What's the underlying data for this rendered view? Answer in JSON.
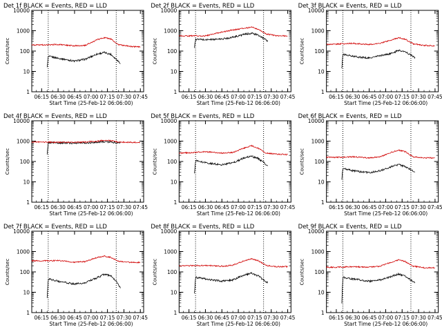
{
  "colors": {
    "events": "#000000",
    "lld": "#d00000",
    "axes": "#000000",
    "background": "#ffffff"
  },
  "chart_data": [
    {
      "type": "line",
      "title": "Det 1f BLACK = Events, RED = LLD",
      "xlabel": "Start Time (25-Feb-12 06:06:00)",
      "ylabel": "Counts/sec",
      "x_ticks": [
        "06:15",
        "06:30",
        "06:45",
        "07:00",
        "07:15",
        "07:30",
        "07:45"
      ],
      "y_ticks": [
        "1",
        "10",
        "100",
        "1000",
        "10000"
      ],
      "yscale": "log",
      "ylim": [
        1,
        10000
      ],
      "xlim": [
        "06:06",
        "07:48"
      ],
      "markers": [
        "06:21",
        "07:23"
      ],
      "series": [
        {
          "name": "Events",
          "color": "#000000",
          "t": [
            "06:20",
            "06:21",
            "06:30",
            "06:45",
            "06:55",
            "07:05",
            "07:12",
            "07:18",
            "07:23",
            "07:27"
          ],
          "values": [
            15,
            55,
            45,
            32,
            40,
            70,
            85,
            70,
            40,
            25
          ]
        },
        {
          "name": "LLD",
          "color": "#d00000",
          "t": [
            "06:06",
            "06:15",
            "06:30",
            "06:45",
            "06:55",
            "07:05",
            "07:12",
            "07:18",
            "07:25",
            "07:35",
            "07:45"
          ],
          "values": [
            200,
            200,
            210,
            180,
            190,
            350,
            460,
            400,
            210,
            170,
            160
          ]
        }
      ]
    },
    {
      "type": "line",
      "title": "Det 2f BLACK = Events, RED = LLD",
      "xlabel": "Start Time (25-Feb-12 06:06:00)",
      "ylabel": "Counts/sec",
      "x_ticks": [
        "06:15",
        "06:30",
        "06:45",
        "07:00",
        "07:15",
        "07:30",
        "07:45"
      ],
      "y_ticks": [
        "1",
        "10",
        "100",
        "1000",
        "10000"
      ],
      "yscale": "log",
      "ylim": [
        1,
        10000
      ],
      "xlim": [
        "06:06",
        "07:48"
      ],
      "markers": [
        "06:21",
        "07:23"
      ],
      "series": [
        {
          "name": "Events",
          "color": "#000000",
          "t": [
            "06:20",
            "06:21",
            "06:30",
            "06:45",
            "06:55",
            "07:05",
            "07:12",
            "07:18",
            "07:23",
            "07:27"
          ],
          "values": [
            150,
            380,
            360,
            390,
            480,
            650,
            760,
            600,
            420,
            310
          ]
        },
        {
          "name": "LLD",
          "color": "#d00000",
          "t": [
            "06:06",
            "06:15",
            "06:30",
            "06:45",
            "06:55",
            "07:05",
            "07:12",
            "07:18",
            "07:25",
            "07:35",
            "07:45"
          ],
          "values": [
            560,
            560,
            560,
            860,
            1100,
            1300,
            1500,
            1200,
            700,
            560,
            560
          ]
        }
      ]
    },
    {
      "type": "line",
      "title": "Det 3f BLACK = Events, RED = LLD",
      "xlabel": "Start Time (25-Feb-12 06:06:00)",
      "ylabel": "Counts/sec",
      "x_ticks": [
        "06:15",
        "06:30",
        "06:45",
        "07:00",
        "07:15",
        "07:30",
        "07:45"
      ],
      "y_ticks": [
        "1",
        "10",
        "100",
        "1000",
        "10000"
      ],
      "yscale": "log",
      "ylim": [
        1,
        10000
      ],
      "xlim": [
        "06:06",
        "07:48"
      ],
      "markers": [
        "06:21",
        "07:23"
      ],
      "series": [
        {
          "name": "Events",
          "color": "#000000",
          "t": [
            "06:20",
            "06:21",
            "06:30",
            "06:45",
            "06:55",
            "07:05",
            "07:12",
            "07:18",
            "07:23",
            "07:27"
          ],
          "values": [
            13,
            70,
            55,
            45,
            60,
            75,
            110,
            90,
            65,
            45
          ]
        },
        {
          "name": "LLD",
          "color": "#d00000",
          "t": [
            "06:06",
            "06:15",
            "06:30",
            "06:45",
            "06:55",
            "07:05",
            "07:12",
            "07:18",
            "07:25",
            "07:35",
            "07:45"
          ],
          "values": [
            210,
            220,
            240,
            210,
            240,
            350,
            450,
            380,
            230,
            190,
            180
          ]
        }
      ]
    },
    {
      "type": "line",
      "title": "Det 4f BLACK = Events, RED = LLD",
      "xlabel": "Start Time (25-Feb-12 06:06:00)",
      "ylabel": "Counts/sec",
      "x_ticks": [
        "06:15",
        "06:30",
        "06:45",
        "07:00",
        "07:15",
        "07:30",
        "07:45"
      ],
      "y_ticks": [
        "1",
        "10",
        "100",
        "1000",
        "10000"
      ],
      "yscale": "log",
      "ylim": [
        1,
        10000
      ],
      "xlim": [
        "06:06",
        "07:48"
      ],
      "markers": [
        "06:21",
        "07:23"
      ],
      "series": [
        {
          "name": "Events",
          "color": "#000000",
          "t": [
            "06:20",
            "06:21",
            "06:30",
            "06:45",
            "06:55",
            "07:05",
            "07:12",
            "07:18",
            "07:23",
            "07:27"
          ],
          "values": [
            200,
            850,
            820,
            800,
            820,
            880,
            950,
            900,
            830,
            800
          ]
        },
        {
          "name": "LLD",
          "color": "#d00000",
          "t": [
            "06:06",
            "06:15",
            "06:30",
            "06:45",
            "06:55",
            "07:05",
            "07:12",
            "07:18",
            "07:25",
            "07:35",
            "07:45"
          ],
          "values": [
            900,
            900,
            880,
            880,
            900,
            1000,
            1100,
            1050,
            900,
            880,
            860
          ]
        }
      ]
    },
    {
      "type": "line",
      "title": "Det 5f BLACK = Events, RED = LLD",
      "xlabel": "Start Time (25-Feb-12 06:06:00)",
      "ylabel": "Counts/sec",
      "x_ticks": [
        "06:15",
        "06:30",
        "06:45",
        "07:00",
        "07:15",
        "07:30",
        "07:45"
      ],
      "y_ticks": [
        "1",
        "10",
        "100",
        "1000",
        "10000"
      ],
      "yscale": "log",
      "ylim": [
        1,
        10000
      ],
      "xlim": [
        "06:06",
        "07:48"
      ],
      "markers": [
        "06:21",
        "07:23"
      ],
      "series": [
        {
          "name": "Events",
          "color": "#000000",
          "t": [
            "06:20",
            "06:21",
            "06:30",
            "06:45",
            "06:55",
            "07:05",
            "07:12",
            "07:18",
            "07:23",
            "07:27"
          ],
          "values": [
            25,
            110,
            85,
            70,
            85,
            150,
            180,
            140,
            90,
            60
          ]
        },
        {
          "name": "LLD",
          "color": "#d00000",
          "t": [
            "06:06",
            "06:15",
            "06:30",
            "06:45",
            "06:55",
            "07:05",
            "07:12",
            "07:18",
            "07:25",
            "07:35",
            "07:45"
          ],
          "values": [
            260,
            270,
            300,
            260,
            280,
            450,
            600,
            450,
            260,
            230,
            220
          ]
        }
      ]
    },
    {
      "type": "line",
      "title": "Det 6f BLACK = Events, RED = LLD",
      "xlabel": "Start Time (25-Feb-12 06:06:00)",
      "ylabel": "Counts/sec",
      "x_ticks": [
        "06:15",
        "06:30",
        "06:45",
        "07:00",
        "07:15",
        "07:30",
        "07:45"
      ],
      "y_ticks": [
        "1",
        "10",
        "100",
        "1000",
        "10000"
      ],
      "yscale": "log",
      "ylim": [
        1,
        10000
      ],
      "xlim": [
        "06:06",
        "07:48"
      ],
      "markers": [
        "06:21",
        "07:23"
      ],
      "series": [
        {
          "name": "Events",
          "color": "#000000",
          "t": [
            "06:20",
            "06:21",
            "06:30",
            "06:45",
            "06:55",
            "07:05",
            "07:12",
            "07:18",
            "07:23",
            "07:27"
          ],
          "values": [
            14,
            45,
            35,
            28,
            35,
            55,
            70,
            55,
            40,
            30
          ]
        },
        {
          "name": "LLD",
          "color": "#d00000",
          "t": [
            "06:06",
            "06:15",
            "06:30",
            "06:45",
            "06:55",
            "07:05",
            "07:12",
            "07:18",
            "07:25",
            "07:35",
            "07:45"
          ],
          "values": [
            160,
            160,
            170,
            150,
            170,
            280,
            360,
            300,
            170,
            150,
            150
          ]
        }
      ]
    },
    {
      "type": "line",
      "title": "Det 7f BLACK = Events, RED = LLD",
      "xlabel": "Start Time (25-Feb-12 06:06:00)",
      "ylabel": "Counts/sec",
      "x_ticks": [
        "06:15",
        "06:30",
        "06:45",
        "07:00",
        "07:15",
        "07:30",
        "07:45"
      ],
      "y_ticks": [
        "1",
        "10",
        "100",
        "1000",
        "10000"
      ],
      "yscale": "log",
      "ylim": [
        1,
        10000
      ],
      "xlim": [
        "06:06",
        "07:48"
      ],
      "markers": [
        "06:21",
        "07:23"
      ],
      "series": [
        {
          "name": "Events",
          "color": "#000000",
          "t": [
            "06:20",
            "06:21",
            "06:30",
            "06:45",
            "06:55",
            "07:05",
            "07:12",
            "07:18",
            "07:23",
            "07:27"
          ],
          "values": [
            5,
            45,
            35,
            25,
            30,
            50,
            75,
            65,
            35,
            15
          ]
        },
        {
          "name": "LLD",
          "color": "#d00000",
          "t": [
            "06:06",
            "06:15",
            "06:30",
            "06:45",
            "06:55",
            "07:05",
            "07:12",
            "07:18",
            "07:25",
            "07:35",
            "07:45"
          ],
          "values": [
            350,
            350,
            360,
            300,
            320,
            500,
            600,
            520,
            330,
            300,
            290
          ]
        }
      ]
    },
    {
      "type": "line",
      "title": "Det 8f BLACK = Events, RED = LLD",
      "xlabel": "Start Time (25-Feb-12 06:06:00)",
      "ylabel": "Counts/sec",
      "x_ticks": [
        "06:15",
        "06:30",
        "06:45",
        "07:00",
        "07:15",
        "07:30",
        "07:45"
      ],
      "y_ticks": [
        "1",
        "10",
        "100",
        "1000",
        "10000"
      ],
      "yscale": "log",
      "ylim": [
        1,
        10000
      ],
      "xlim": [
        "06:06",
        "07:48"
      ],
      "markers": [
        "06:21",
        "07:23"
      ],
      "series": [
        {
          "name": "Events",
          "color": "#000000",
          "t": [
            "06:20",
            "06:21",
            "06:30",
            "06:45",
            "06:55",
            "07:05",
            "07:12",
            "07:18",
            "07:23",
            "07:27"
          ],
          "values": [
            8,
            55,
            45,
            35,
            40,
            70,
            85,
            65,
            40,
            30
          ]
        },
        {
          "name": "LLD",
          "color": "#d00000",
          "t": [
            "06:06",
            "06:15",
            "06:30",
            "06:45",
            "06:55",
            "07:05",
            "07:12",
            "07:18",
            "07:25",
            "07:35",
            "07:45"
          ],
          "values": [
            200,
            200,
            210,
            190,
            210,
            350,
            440,
            360,
            210,
            180,
            180
          ]
        }
      ]
    },
    {
      "type": "line",
      "title": "Det 9f BLACK = Events, RED = LLD",
      "xlabel": "Start Time (25-Feb-12 06:06:00)",
      "ylabel": "Counts/sec",
      "x_ticks": [
        "06:15",
        "06:30",
        "06:45",
        "07:00",
        "07:15",
        "07:30",
        "07:45"
      ],
      "y_ticks": [
        "1",
        "10",
        "100",
        "1000",
        "10000"
      ],
      "yscale": "log",
      "ylim": [
        1,
        10000
      ],
      "xlim": [
        "06:06",
        "07:48"
      ],
      "markers": [
        "06:21",
        "07:23"
      ],
      "series": [
        {
          "name": "Events",
          "color": "#000000",
          "t": [
            "06:20",
            "06:21",
            "06:30",
            "06:45",
            "06:55",
            "07:05",
            "07:12",
            "07:18",
            "07:23",
            "07:27"
          ],
          "values": [
            3,
            55,
            45,
            35,
            40,
            60,
            80,
            60,
            40,
            28
          ]
        },
        {
          "name": "LLD",
          "color": "#d00000",
          "t": [
            "06:06",
            "06:15",
            "06:30",
            "06:45",
            "06:55",
            "07:05",
            "07:12",
            "07:18",
            "07:25",
            "07:35",
            "07:45"
          ],
          "values": [
            170,
            170,
            180,
            170,
            190,
            300,
            400,
            320,
            190,
            160,
            160
          ]
        }
      ]
    }
  ]
}
